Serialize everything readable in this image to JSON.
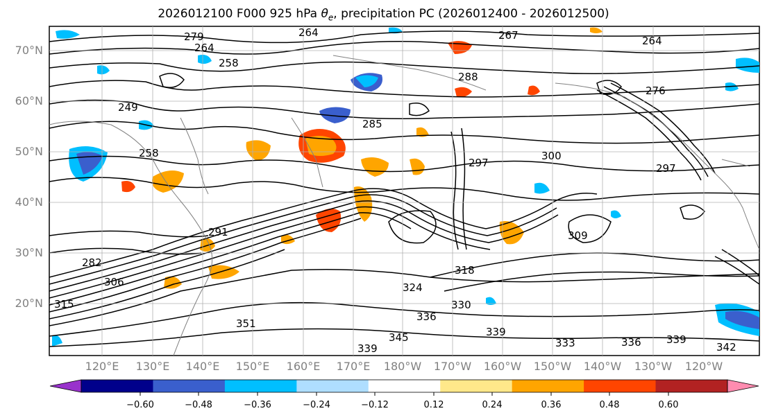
{
  "title": "2026012100 F000 925 hPa θe, precipitation PC (2026012400 - 2026012500)",
  "latitude_labels": [
    "70°N",
    "60°N",
    "50°N",
    "40°N",
    "30°N",
    "20°N"
  ],
  "longitude_labels": [
    "120°E",
    "130°E",
    "140°E",
    "150°E",
    "160°E",
    "170°E",
    "180°W",
    "170°W",
    "160°W",
    "150°W",
    "140°W",
    "130°W",
    "120°W"
  ],
  "contour_labels": [
    "264",
    "279",
    "264",
    "258",
    "267",
    "264",
    "249",
    "258",
    "285",
    "288",
    "276",
    "300",
    "297",
    "297",
    "291",
    "309",
    "318",
    "282",
    "306",
    "324",
    "330",
    "336",
    "351",
    "339",
    "345",
    "339",
    "333",
    "336",
    "339",
    "342",
    "315"
  ],
  "colorbar": {
    "ticks": [
      "−0.60",
      "−0.48",
      "−0.36",
      "−0.24",
      "−0.12",
      "0.12",
      "0.24",
      "0.36",
      "0.48",
      "0.60"
    ],
    "colors": [
      "#9932cc",
      "#00008b",
      "#3a5fcd",
      "#00bfff",
      "#afdeff",
      "#ffffff",
      "#ffe88a",
      "#ffa500",
      "#ff4500",
      "#b22222",
      "#ff8cb0"
    ]
  },
  "colors": {
    "land_outline": "#808080",
    "grid": "#b0b0b0",
    "contour": "#000000"
  }
}
